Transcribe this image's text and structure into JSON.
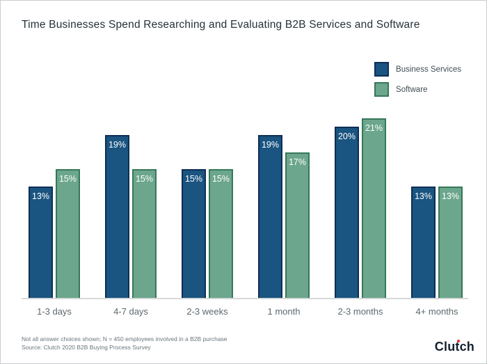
{
  "colors": {
    "business_services_fill": "#1A5480",
    "business_services_border": "#0D2E55",
    "software_fill": "#6CA68C",
    "software_border": "#35785A",
    "bar_label_text": "#FFFFFF",
    "axis_line": "#D5D9DA",
    "logo_dot_red": "#E62B32"
  },
  "chart_data": {
    "type": "bar",
    "title": "Time Businesses Spend Researching and Evaluating B2B Services and Software",
    "categories": [
      "1-3 days",
      "4-7 days",
      "2-3 weeks",
      "1 month",
      "2-3 months",
      "4+ months"
    ],
    "series": [
      {
        "name": "Business Services",
        "values": [
          13,
          19,
          15,
          19,
          20,
          13
        ],
        "color": "#1A5480"
      },
      {
        "name": "Software",
        "values": [
          15,
          15,
          15,
          17,
          21,
          13
        ],
        "color": "#6CA68C"
      }
    ],
    "value_format": "percent",
    "value_suffix": "%",
    "ylim": [
      0,
      25
    ],
    "grid": false,
    "y_axis_shown": false,
    "legend_position": "top-right",
    "bar_labels_inside": true
  },
  "footnote": {
    "line1": "Not all answer choices shown; N = 450 employees involved in a B2B purchase",
    "line2": "Source: Clutch 2020 B2B Buying Process Survey"
  },
  "logo": {
    "text": "Clutch"
  }
}
